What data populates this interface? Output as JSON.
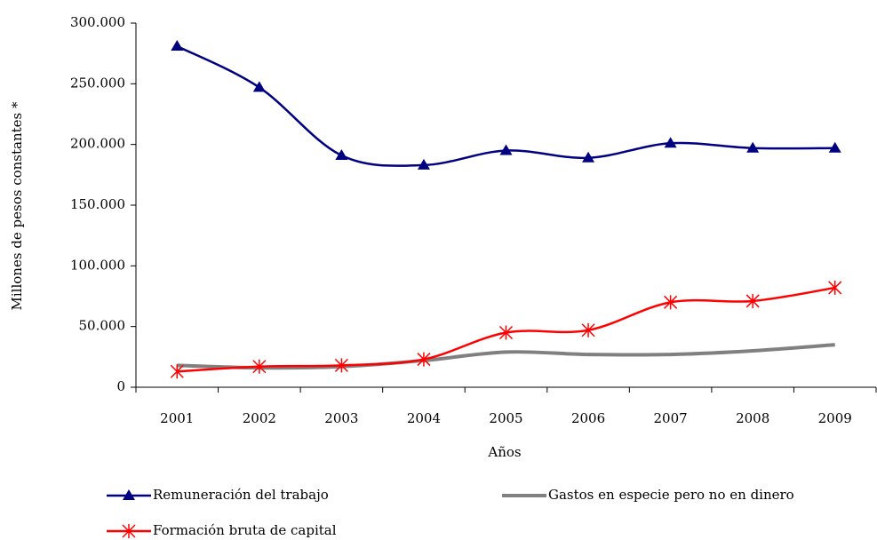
{
  "chart_data": {
    "type": "line",
    "smooth": true,
    "x_label": "Años",
    "y_label": "Millones de pesos constantes *",
    "categories": [
      "2001",
      "2002",
      "2003",
      "2004",
      "2005",
      "2006",
      "2007",
      "2008",
      "2009"
    ],
    "series": [
      {
        "name": "Remuneración del trabajo",
        "color": "#000080",
        "marker": "triangle",
        "values": [
          281000,
          247000,
          191000,
          183000,
          195000,
          189000,
          201000,
          197000,
          197000
        ]
      },
      {
        "name": "Gastos en especie pero no en dinero",
        "color": "#808080",
        "marker": "none",
        "values": [
          18000,
          16000,
          17000,
          22000,
          29000,
          27000,
          27000,
          30000,
          35000
        ]
      },
      {
        "name": "Formación bruta de capital",
        "color": "#ff0000",
        "marker": "asterisk",
        "values": [
          13000,
          17000,
          18000,
          23000,
          45000,
          47000,
          70000,
          71000,
          82000
        ]
      }
    ],
    "ylim": [
      0,
      300000
    ],
    "yticks": [
      0,
      {
        "value": 50000,
        "label": "50.000"
      },
      {
        "value": 100000,
        "label": "100.000"
      },
      {
        "value": 150000,
        "label": "150.000"
      },
      {
        "value": 200000,
        "label": "200.000"
      },
      {
        "value": 250000,
        "label": "250.000"
      },
      {
        "value": 300000,
        "label": "300.000"
      }
    ],
    "grid": false,
    "legend": "bottom"
  }
}
